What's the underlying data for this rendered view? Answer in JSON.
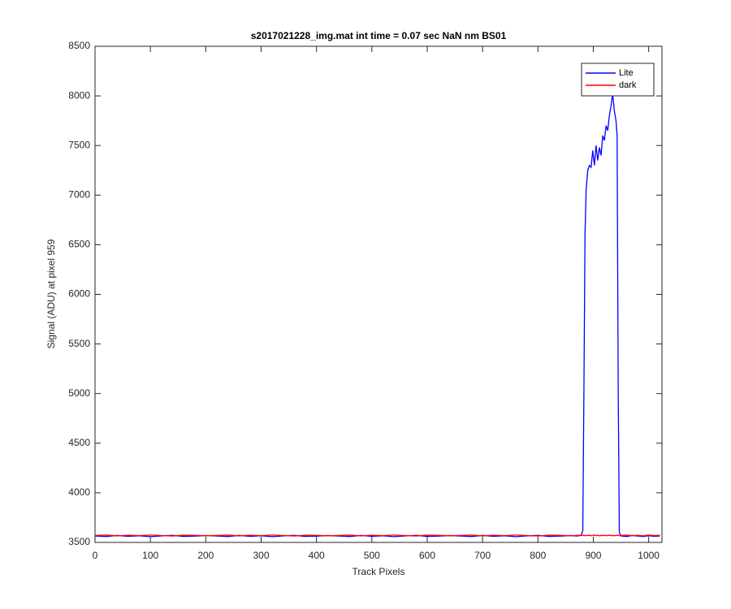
{
  "chart_data": {
    "type": "line",
    "title": "s2017021228_img.mat int time = 0.07 sec  NaN nm BS01",
    "xlabel": "Track Pixels",
    "ylabel": "Signal (ADU) at pixel 959",
    "x": [
      0,
      20,
      40,
      60,
      80,
      100,
      120,
      140,
      160,
      180,
      200,
      220,
      240,
      260,
      280,
      300,
      320,
      340,
      360,
      380,
      400,
      420,
      440,
      460,
      480,
      500,
      520,
      540,
      560,
      580,
      600,
      620,
      640,
      660,
      680,
      700,
      720,
      740,
      760,
      780,
      800,
      820,
      840,
      860,
      870,
      878,
      881,
      883,
      885,
      887,
      890,
      893,
      896,
      899,
      902,
      905,
      908,
      911,
      914,
      917,
      920,
      923,
      926,
      929,
      932,
      935,
      938,
      941,
      943,
      945,
      947,
      950,
      960,
      970,
      980,
      990,
      1000,
      1010,
      1020
    ],
    "series": [
      {
        "name": "Lite",
        "color": "#0000ff",
        "values": [
          3565,
          3560,
          3570,
          3562,
          3567,
          3558,
          3566,
          3571,
          3561,
          3564,
          3569,
          3565,
          3560,
          3570,
          3562,
          3567,
          3558,
          3566,
          3571,
          3561,
          3564,
          3569,
          3565,
          3560,
          3570,
          3562,
          3567,
          3558,
          3566,
          3571,
          3561,
          3564,
          3569,
          3565,
          3560,
          3570,
          3562,
          3567,
          3558,
          3566,
          3571,
          3561,
          3564,
          3569,
          3565,
          3570,
          3620,
          5000,
          6600,
          7050,
          7250,
          7300,
          7280,
          7450,
          7300,
          7500,
          7350,
          7480,
          7400,
          7600,
          7550,
          7700,
          7650,
          7800,
          7900,
          8020,
          7850,
          7750,
          7600,
          5000,
          3600,
          3565,
          3560,
          3570,
          3565,
          3560,
          3568,
          3562,
          3565
        ]
      },
      {
        "name": "dark",
        "color": "#ff0000",
        "values": [
          3570,
          3574,
          3566,
          3572,
          3568,
          3575,
          3569,
          3565,
          3573,
          3571,
          3567,
          3570,
          3574,
          3566,
          3572,
          3568,
          3575,
          3569,
          3565,
          3573,
          3571,
          3567,
          3570,
          3574,
          3566,
          3572,
          3568,
          3575,
          3569,
          3565,
          3573,
          3571,
          3567,
          3570,
          3574,
          3566,
          3572,
          3568,
          3575,
          3569,
          3565,
          3573,
          3571,
          3567,
          3570,
          3572,
          3568,
          3574,
          3566,
          3571,
          3569,
          3573,
          3567,
          3570,
          3575,
          3568,
          3572,
          3566,
          3571,
          3569,
          3574,
          3567,
          3570,
          3573,
          3568,
          3571,
          3566,
          3572,
          3569,
          3575,
          3567,
          3570,
          3573,
          3568,
          3571,
          3566,
          3574,
          3569,
          3572
        ]
      }
    ],
    "xlim": [
      0,
      1024
    ],
    "ylim": [
      3500,
      8500
    ],
    "xticks": [
      0,
      100,
      200,
      300,
      400,
      500,
      600,
      700,
      800,
      900,
      1000
    ],
    "yticks": [
      3500,
      4000,
      4500,
      5000,
      5500,
      6000,
      6500,
      7000,
      7500,
      8000,
      8500
    ],
    "grid": false,
    "legend": "northeast"
  }
}
